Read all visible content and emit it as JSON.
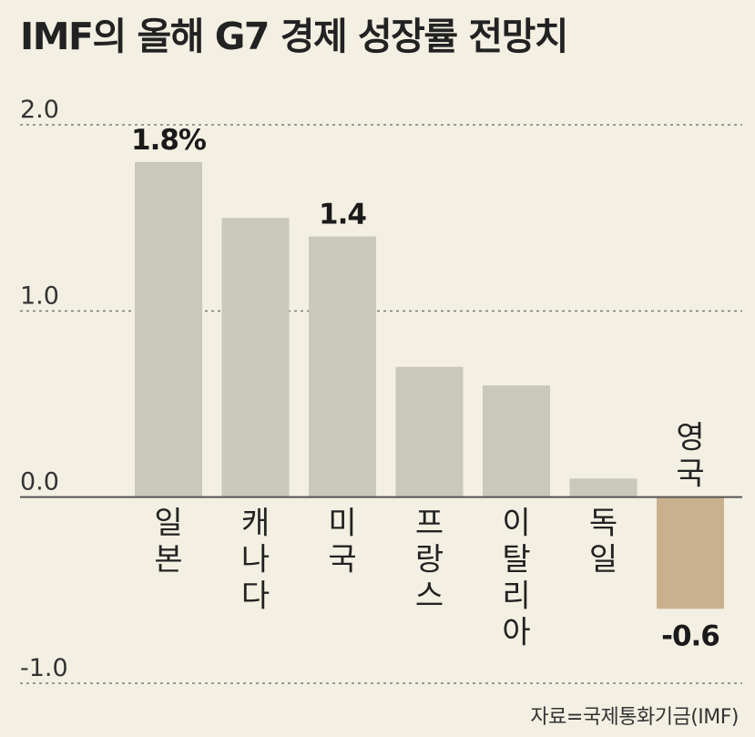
{
  "title": "IMF의 올해 G7 경제 성장률 전망치",
  "source": "자료=국제통화기금(IMF)",
  "chart_data": {
    "type": "bar",
    "title": "IMF의 올해 G7 경제 성장률 전망치",
    "categories": [
      "일본",
      "캐나다",
      "미국",
      "프랑스",
      "이탈리아",
      "독일",
      "영국"
    ],
    "values": [
      1.8,
      1.5,
      1.4,
      0.7,
      0.6,
      0.1,
      -0.6
    ],
    "value_labels": [
      "1.8%",
      "",
      "1.4",
      "",
      "",
      "",
      "-0.6"
    ],
    "yticks": [
      "2.0",
      "1.0",
      "0.0",
      "-1.0"
    ],
    "ylim": [
      -1.0,
      2.0
    ],
    "grid": true,
    "colors": {
      "positive": "#cac8b8",
      "negative": "#c9b08e",
      "gridline": "#7a7a7a",
      "zero_line": "#555555"
    }
  }
}
